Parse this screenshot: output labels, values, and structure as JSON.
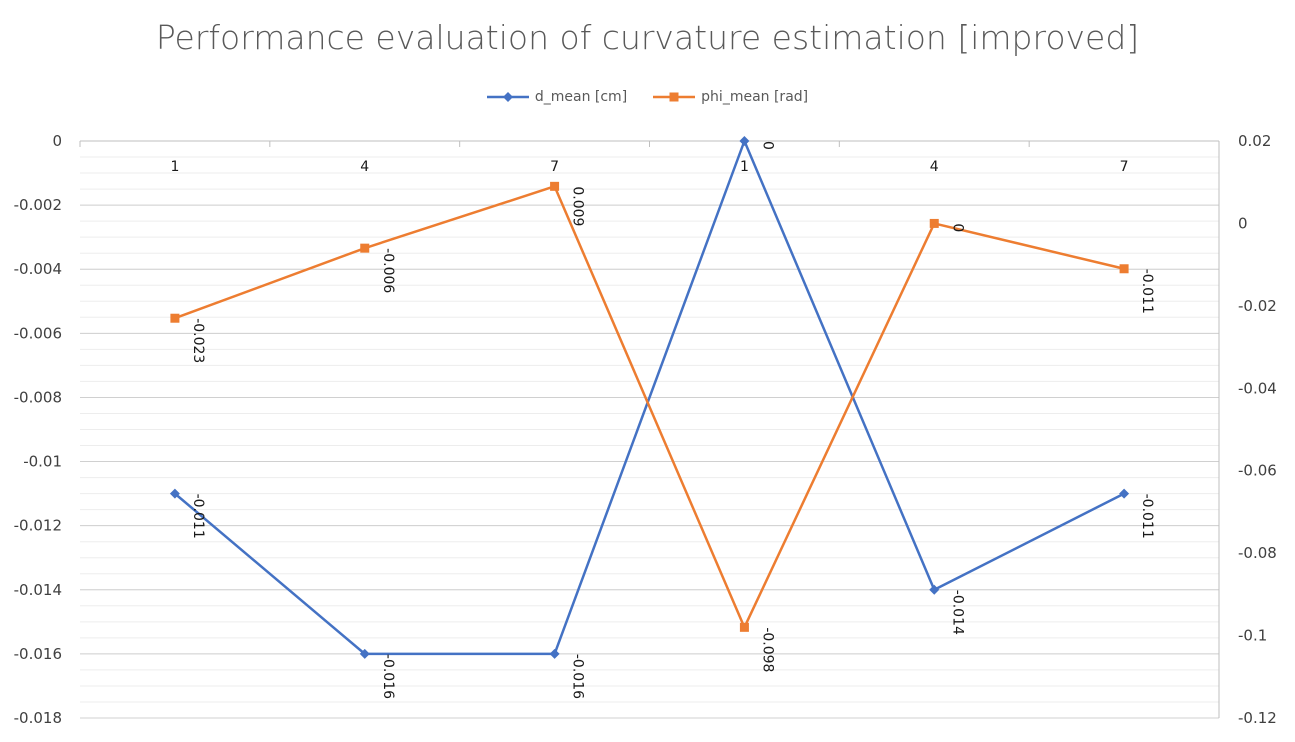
{
  "chart_data": {
    "type": "line",
    "title": "Performance evaluation of curvature estimation [improved]",
    "categories": [
      "1",
      "4",
      "7",
      "1",
      "4",
      "7"
    ],
    "legend_position": "top",
    "grid": true,
    "y_left": {
      "range": [
        -0.018,
        0
      ],
      "ticks": [
        "0",
        "-0.002",
        "-0.004",
        "-0.006",
        "-0.008",
        "-0.01",
        "-0.012",
        "-0.014",
        "-0.016",
        "-0.018"
      ]
    },
    "y_right": {
      "range": [
        -0.12,
        0.02
      ],
      "ticks": [
        "0.02",
        "0",
        "-0.02",
        "-0.04",
        "-0.06",
        "-0.08",
        "-0.1",
        "-0.12"
      ]
    },
    "series": [
      {
        "name": "d_mean [cm]",
        "axis": "left",
        "color": "#4472C4",
        "marker": "diamond",
        "values": [
          -0.011,
          -0.016,
          -0.016,
          0,
          -0.014,
          -0.011
        ],
        "labels": [
          "-0.011",
          "-0.016",
          "-0.016",
          "0",
          "-0.014",
          "-0.011"
        ]
      },
      {
        "name": "phi_mean [rad]",
        "axis": "right",
        "color": "#ED7D31",
        "marker": "square",
        "values": [
          -0.023,
          -0.006,
          0.009,
          -0.098,
          0,
          -0.011
        ],
        "labels": [
          "-0.023",
          "-0.006",
          "0.009",
          "-0.098",
          "0",
          "-0.011"
        ]
      }
    ]
  }
}
